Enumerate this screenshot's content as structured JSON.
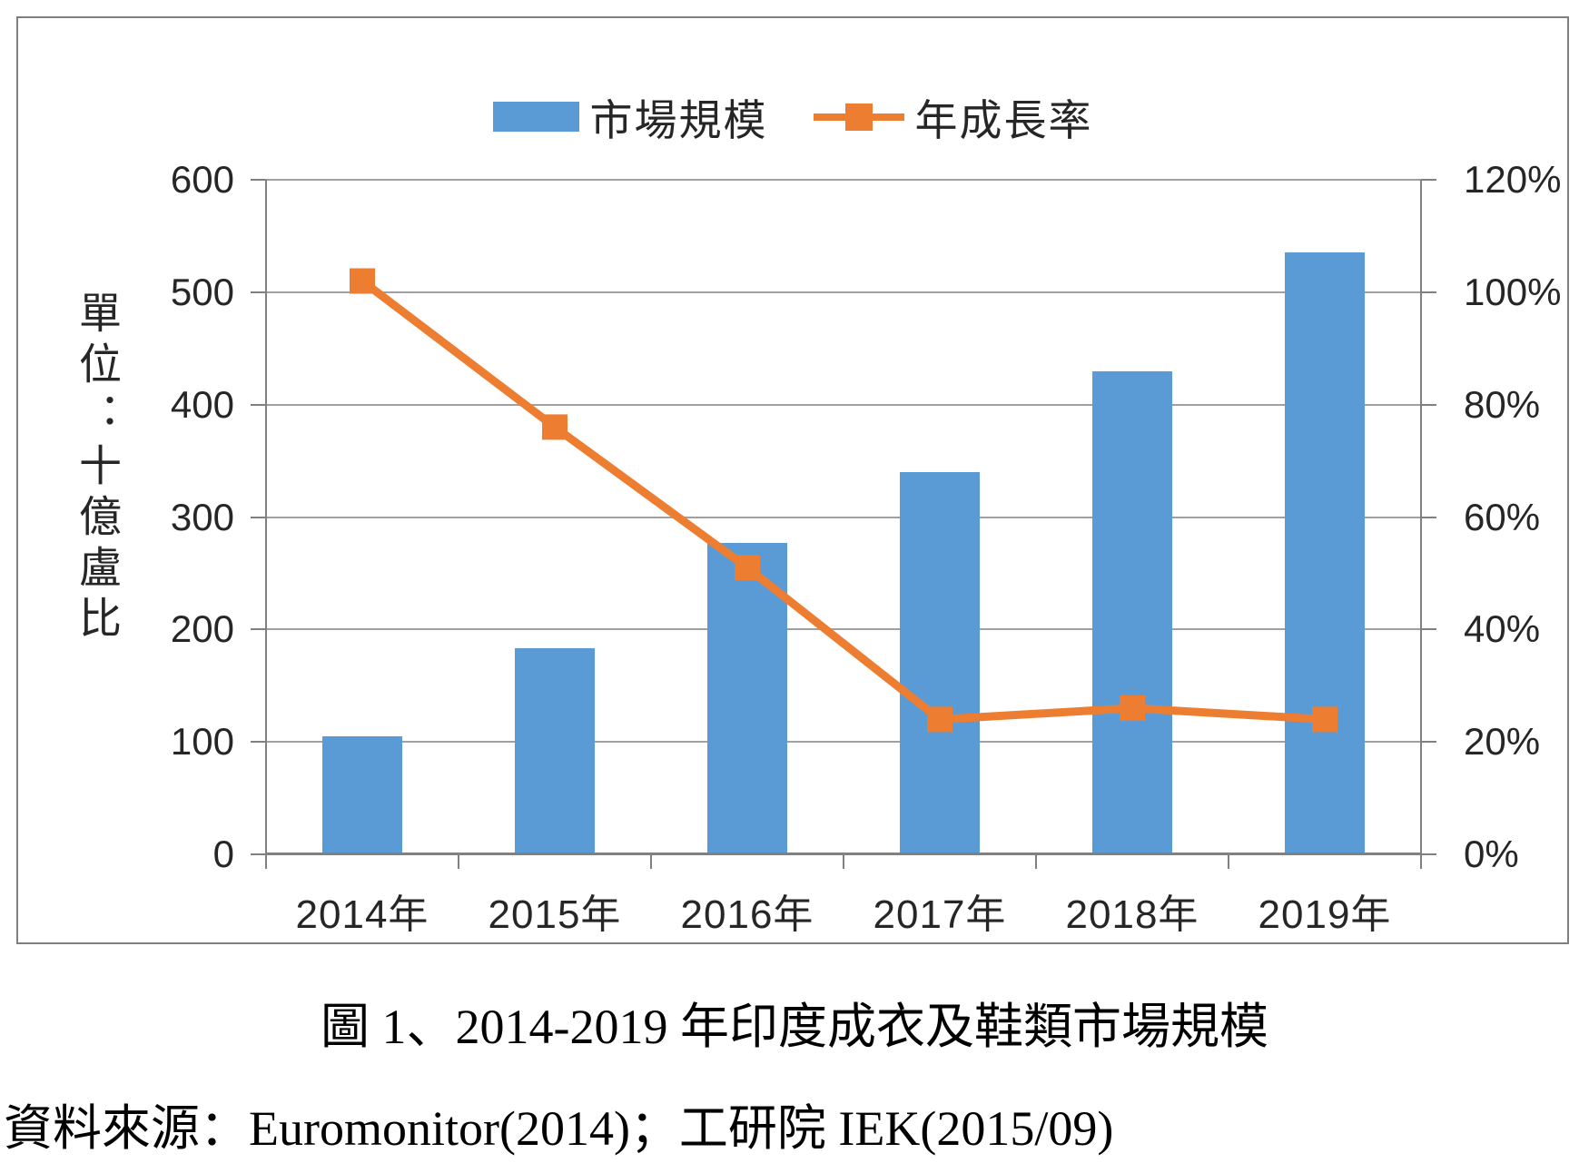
{
  "caption": "圖 1、2014-2019 年印度成衣及鞋類市場規模",
  "source": "資料來源：Euromonitor(2014)；工研院 IEK(2015/09)",
  "colors": {
    "bar": "#5B9BD5",
    "line": "#ED7D31",
    "grid": "#a0a0a0",
    "axis": "#808080"
  },
  "chart_data": {
    "type": "bar+line",
    "title": "圖 1、2014-2019 年印度成衣及鞋類市場規模",
    "categories": [
      "2014年",
      "2015年",
      "2016年",
      "2017年",
      "2018年",
      "2019年"
    ],
    "series": [
      {
        "name": "市場規模",
        "type": "bar",
        "axis": "left",
        "values": [
          105,
          183,
          277,
          340,
          430,
          535
        ]
      },
      {
        "name": "年成長率",
        "type": "line",
        "axis": "right",
        "values_percent": [
          102,
          76,
          51,
          24,
          26,
          24
        ]
      }
    ],
    "left_axis": {
      "unit_label": "單位：十億盧比",
      "range": [
        0,
        600
      ],
      "tick_step": 100,
      "ticks": [
        "600",
        "500",
        "400",
        "300",
        "200",
        "100",
        "0"
      ]
    },
    "right_axis": {
      "range_percent": [
        0,
        120
      ],
      "tick_step_percent": 20,
      "ticks": [
        "120%",
        "100%",
        "80%",
        "60%",
        "40%",
        "20%",
        "0%"
      ]
    },
    "grid": true,
    "legend_position": "top"
  }
}
